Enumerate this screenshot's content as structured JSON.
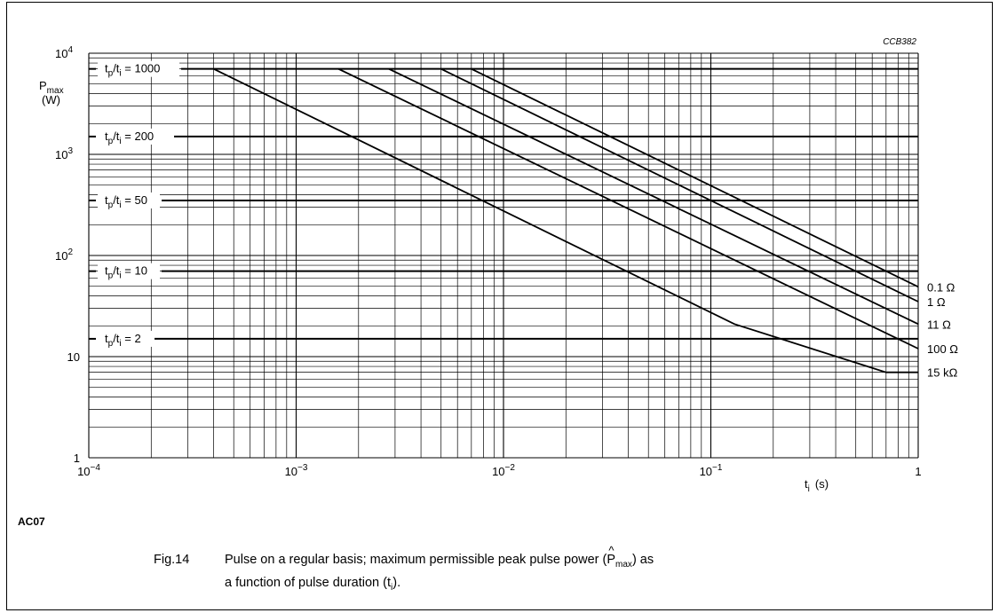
{
  "chart_data": {
    "type": "line",
    "code": "CCB382",
    "xscale": "log",
    "yscale": "log",
    "xlim": [
      0.0001,
      1
    ],
    "ylim": [
      1,
      10000
    ],
    "grid": true,
    "x_ticks": [
      {
        "value": 0.0001,
        "base": "10",
        "exp": "−4"
      },
      {
        "value": 0.001,
        "base": "10",
        "exp": "−3"
      },
      {
        "value": 0.01,
        "base": "10",
        "exp": "−2"
      },
      {
        "value": 0.1,
        "base": "10",
        "exp": "−1"
      },
      {
        "value": 1,
        "base": "1",
        "exp": ""
      }
    ],
    "y_ticks": [
      {
        "value": 1,
        "base": "1",
        "exp": ""
      },
      {
        "value": 10,
        "base": "10",
        "exp": ""
      },
      {
        "value": 100,
        "base": "10",
        "exp": "2"
      },
      {
        "value": 1000,
        "base": "10",
        "exp": "3"
      },
      {
        "value": 10000,
        "base": "10",
        "exp": "4"
      }
    ],
    "ylabel_main": "P",
    "ylabel_sub": "max",
    "ylabel_unit": "(W)",
    "xlabel_main": "t",
    "xlabel_sub": "i",
    "xlabel_unit": "(s)",
    "ratio_lines": [
      {
        "ratio": "1000",
        "y": 7000
      },
      {
        "ratio": "200",
        "y": 1500
      },
      {
        "ratio": "50",
        "y": 350
      },
      {
        "ratio": "10",
        "y": 70
      },
      {
        "ratio": "2",
        "y": 15
      }
    ],
    "ratio_prefix_t": "t",
    "ratio_sub_p": "p",
    "ratio_sub_i": "i",
    "ratio_slash": "/",
    "ratio_eq": " = ",
    "series": [
      {
        "name": "0.1 Ω",
        "points": [
          [
            0.007,
            7000
          ],
          [
            1,
            49
          ]
        ]
      },
      {
        "name": "1 Ω",
        "points": [
          [
            0.005,
            7000
          ],
          [
            1,
            35
          ]
        ]
      },
      {
        "name": "11 Ω",
        "points": [
          [
            0.0028,
            7000
          ],
          [
            1,
            21
          ]
        ]
      },
      {
        "name": "100 Ω",
        "points": [
          [
            0.0016,
            7000
          ],
          [
            1,
            12
          ]
        ]
      },
      {
        "name": "15 kΩ",
        "points": [
          [
            0.0004,
            7000
          ],
          [
            0.13,
            21
          ],
          [
            0.7,
            7
          ],
          [
            1,
            7
          ]
        ]
      }
    ]
  },
  "ac_code": "AC07",
  "caption": {
    "fig": "Fig.14",
    "line1_a": "Pulse on a regular basis; maximum permissible peak pulse power (",
    "line1_p": "P",
    "line1_sub": "max",
    "line1_b": ") as",
    "line2_a": "a function of pulse duration (t",
    "line2_sub": "i",
    "line2_b": ")."
  }
}
